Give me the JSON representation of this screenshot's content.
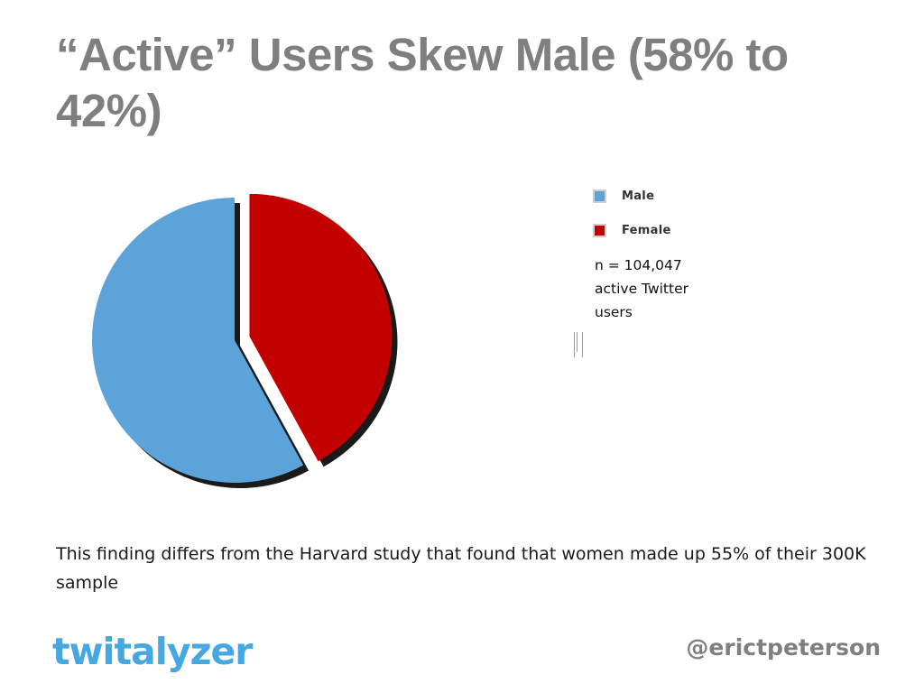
{
  "slide": {
    "title": "“Active” Users Skew Male (58% to 42%)",
    "sample_note_lines": [
      "n = 104,047",
      "active Twitter",
      "users"
    ],
    "footnote": "This finding differs from the Harvard study that found that women made up 55% of their 300K sample",
    "brand_logo": "twitalyzer",
    "author_handle": "@erictpeterson"
  },
  "chart_data": {
    "type": "pie",
    "title": "",
    "categories": [
      "Male",
      "Female"
    ],
    "values": [
      58,
      42
    ],
    "colors": [
      "#5ca3d9",
      "#c20000"
    ],
    "exploded": "Female",
    "legend": {
      "position": "right",
      "entries": [
        "Male",
        "Female"
      ]
    }
  }
}
